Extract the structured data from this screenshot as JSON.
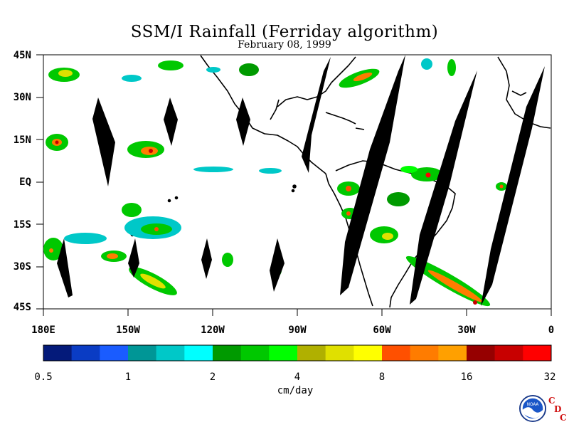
{
  "title": "SSM/I Rainfall (Ferriday algorithm)",
  "subtitle": "February 08, 1999",
  "y_axis": {
    "labels": [
      "45N",
      "30N",
      "15N",
      "EQ",
      "15S",
      "30S",
      "45S"
    ]
  },
  "x_axis": {
    "labels": [
      "180E",
      "150W",
      "120W",
      "90W",
      "60W",
      "30W",
      "0"
    ]
  },
  "colorbar": {
    "colors": [
      "#041a7a",
      "#0a3cc4",
      "#1a5cff",
      "#009696",
      "#00c8c8",
      "#00ffff",
      "#009a00",
      "#00c800",
      "#00ff00",
      "#b0b000",
      "#e0e000",
      "#ffff00",
      "#ff5000",
      "#ff7c00",
      "#ffa000",
      "#960000",
      "#c80000",
      "#ff0000"
    ],
    "tick_labels": [
      "0.5",
      "1",
      "2",
      "4",
      "8",
      "16",
      "32"
    ],
    "units": "cm/day"
  },
  "logo": {
    "noaa_text": "NOAA",
    "cdc_letters": [
      "C",
      "D",
      "C"
    ]
  }
}
